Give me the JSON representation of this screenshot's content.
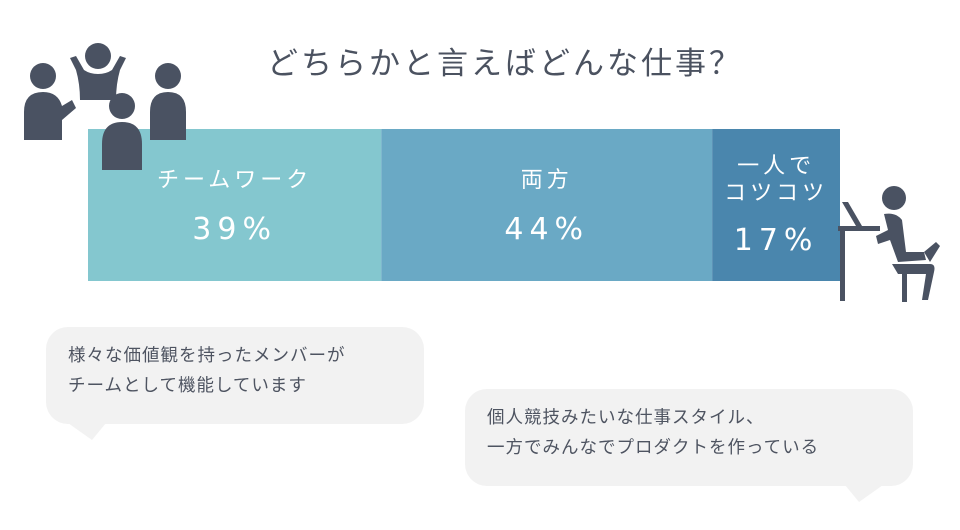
{
  "title": "どちらかと言えばどんな仕事？",
  "chart_data": {
    "type": "bar",
    "stacked": true,
    "orientation": "horizontal",
    "categories": [
      "チームワーク",
      "両方",
      "一人でコツコツ"
    ],
    "values": [
      39,
      44,
      17
    ],
    "value_labels": [
      "39%",
      "44%",
      "17%"
    ],
    "colors": [
      "#84c7cf",
      "#6aa9c5",
      "#4a86ad"
    ]
  },
  "bubbles": {
    "left": {
      "line1": "様々な価値観を持ったメンバーが",
      "line2": "チームとして機能しています"
    },
    "right": {
      "line1": "個人競技みたいな仕事スタイル、",
      "line2": "一方でみんなでプロダクトを作っている"
    }
  },
  "icons": {
    "team": "team-people-icon",
    "solo": "person-at-desk-icon"
  }
}
